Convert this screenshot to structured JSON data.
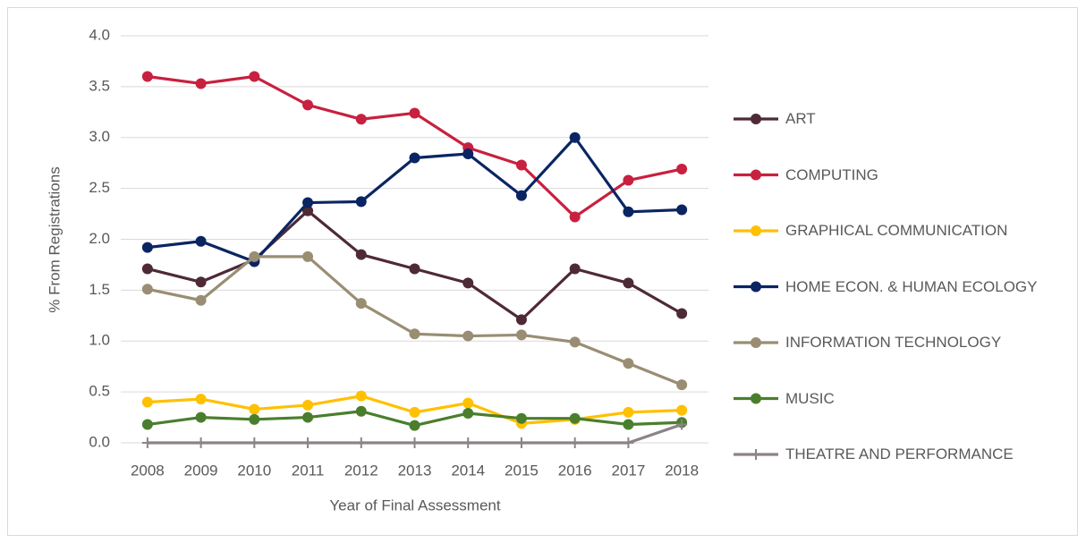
{
  "chart_data": {
    "type": "line",
    "xlabel": "Year of Final Assessment",
    "ylabel": "% From Registrations",
    "categories": [
      "2008",
      "2009",
      "2010",
      "2011",
      "2012",
      "2013",
      "2014",
      "2015",
      "2016",
      "2017",
      "2018"
    ],
    "ylim": [
      0,
      4
    ],
    "yticks": [
      {
        "value": 0,
        "label": "0.0"
      },
      0.5,
      {
        "value": 1,
        "label": "1.0"
      },
      1.5,
      {
        "value": 2,
        "label": "2.0"
      },
      2.5,
      {
        "value": 3,
        "label": "3.0"
      },
      3.5,
      {
        "value": 4,
        "label": "4.0"
      }
    ],
    "grid": true,
    "legend": "right",
    "series": [
      {
        "name": "ART",
        "color": "#4e2a35",
        "marker": "circle",
        "values": [
          1.71,
          1.58,
          1.8,
          2.28,
          1.85,
          1.71,
          1.57,
          1.21,
          1.71,
          1.57,
          1.27
        ]
      },
      {
        "name": "COMPUTING",
        "color": "#c8203f",
        "marker": "circle",
        "values": [
          3.6,
          3.53,
          3.6,
          3.32,
          3.18,
          3.24,
          2.9,
          2.73,
          2.22,
          2.58,
          2.69
        ]
      },
      {
        "name": "GRAPHICAL COMMUNICATION",
        "color": "#ffc000",
        "marker": "circle",
        "values": [
          0.4,
          0.43,
          0.33,
          0.37,
          0.46,
          0.3,
          0.39,
          0.19,
          0.23,
          0.3,
          0.32
        ]
      },
      {
        "name": "HOME ECON. & HUMAN ECOLOGY",
        "color": "#0b2563",
        "marker": "circle",
        "values": [
          1.92,
          1.98,
          1.78,
          2.36,
          2.37,
          2.8,
          2.84,
          2.43,
          3.0,
          2.27,
          2.29
        ]
      },
      {
        "name": "INFORMATION TECHNOLOGY",
        "color": "#998e73",
        "marker": "circle",
        "values": [
          1.51,
          1.4,
          1.83,
          1.83,
          1.37,
          1.07,
          1.05,
          1.06,
          0.99,
          0.78,
          0.57
        ]
      },
      {
        "name": "MUSIC",
        "color": "#4a7e2d",
        "marker": "circle",
        "values": [
          0.18,
          0.25,
          0.23,
          0.25,
          0.31,
          0.17,
          0.29,
          0.24,
          0.24,
          0.18,
          0.2
        ]
      },
      {
        "name": "THEATRE AND PERFORMANCE",
        "color": "#8c8287",
        "marker": "plus",
        "values": [
          0,
          0,
          0,
          0,
          0,
          0,
          0,
          0,
          0,
          0,
          0.18
        ]
      }
    ]
  }
}
